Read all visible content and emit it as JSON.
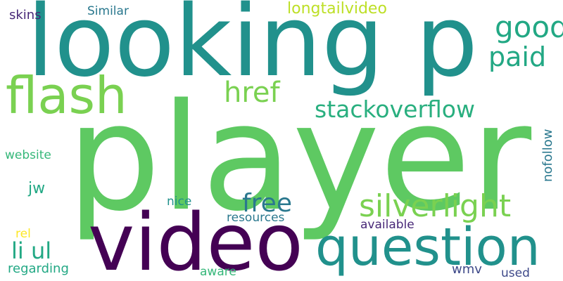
{
  "words": {
    "player": {
      "text": "player",
      "color": "#5ec962"
    },
    "looking_p": {
      "text": "looking p",
      "color": "#21918c"
    },
    "video": {
      "text": "video",
      "color": "#440154"
    },
    "question": {
      "text": "question",
      "color": "#21918c"
    },
    "flash": {
      "text": "flash",
      "color": "#7ad151"
    },
    "silverlight": {
      "text": "silverlight",
      "color": "#7ad151"
    },
    "stackoverflow": {
      "text": "stackoverflow",
      "color": "#29af7f"
    },
    "href": {
      "text": "href",
      "color": "#7ad151"
    },
    "free": {
      "text": "free",
      "color": "#2a788e"
    },
    "good": {
      "text": "good",
      "color": "#22a884"
    },
    "paid": {
      "text": "paid",
      "color": "#22a884"
    },
    "li_ul": {
      "text": "li ul",
      "color": "#22a884"
    },
    "longtailvideo": {
      "text": "longtailvideo",
      "color": "#bddf26"
    },
    "jw": {
      "text": "jw",
      "color": "#22a884"
    },
    "similar": {
      "text": "Similar",
      "color": "#2a788e"
    },
    "skins": {
      "text": "skins",
      "color": "#482878"
    },
    "website": {
      "text": "website",
      "color": "#35b779"
    },
    "nofollow": {
      "text": "nofollow",
      "color": "#2a788e"
    },
    "nice": {
      "text": "nice",
      "color": "#21918c"
    },
    "resources": {
      "text": "resources",
      "color": "#2a788e"
    },
    "available": {
      "text": "available",
      "color": "#482878"
    },
    "rel": {
      "text": "rel",
      "color": "#fde725"
    },
    "regarding": {
      "text": "regarding",
      "color": "#22a884"
    },
    "aware": {
      "text": "aware",
      "color": "#35b779"
    },
    "wmv": {
      "text": "wmv",
      "color": "#3e4989"
    },
    "used": {
      "text": "used",
      "color": "#3e4989"
    }
  }
}
